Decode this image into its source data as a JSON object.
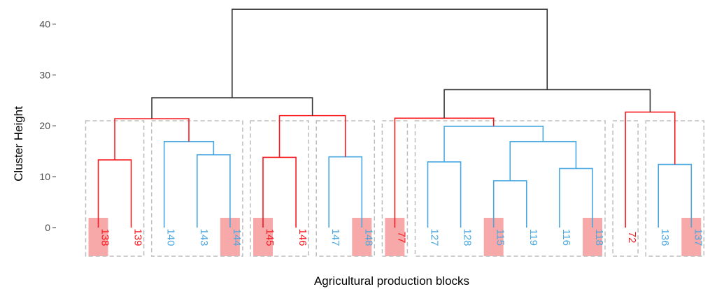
{
  "chart_data": {
    "type": "dendrogram",
    "xlabel": "Agricultural production blocks",
    "ylabel": "Cluster Height",
    "ylim": [
      -6,
      44
    ],
    "yticks": [
      0,
      10,
      20,
      30,
      40
    ],
    "grid": false,
    "colors": {
      "red": "#f8191f",
      "blue": "#4aa8e0",
      "root": "#333333",
      "highlight": "#f7a8a9",
      "box": "#bdbdbd"
    },
    "leaves": [
      {
        "label": "138",
        "color": "red",
        "highlight": true
      },
      {
        "label": "139",
        "color": "red",
        "highlight": false
      },
      {
        "label": "140",
        "color": "blue",
        "highlight": false
      },
      {
        "label": "143",
        "color": "blue",
        "highlight": false
      },
      {
        "label": "144",
        "color": "blue",
        "highlight": true
      },
      {
        "label": "145",
        "color": "red",
        "highlight": true
      },
      {
        "label": "146",
        "color": "red",
        "highlight": false
      },
      {
        "label": "147",
        "color": "blue",
        "highlight": false
      },
      {
        "label": "148",
        "color": "blue",
        "highlight": true
      },
      {
        "label": "77",
        "color": "red",
        "highlight": true
      },
      {
        "label": "127",
        "color": "blue",
        "highlight": false
      },
      {
        "label": "128",
        "color": "blue",
        "highlight": false
      },
      {
        "label": "115",
        "color": "blue",
        "highlight": true
      },
      {
        "label": "119",
        "color": "blue",
        "highlight": false
      },
      {
        "label": "116",
        "color": "blue",
        "highlight": false
      },
      {
        "label": "118",
        "color": "blue",
        "highlight": true
      },
      {
        "label": "72",
        "color": "red",
        "highlight": false
      },
      {
        "label": "136",
        "color": "blue",
        "highlight": false
      },
      {
        "label": "137",
        "color": "blue",
        "highlight": true
      }
    ],
    "merges": [
      {
        "id": "m1",
        "left": 0,
        "right": 1,
        "height": 13.3,
        "color": "red"
      },
      {
        "id": "m2",
        "left": 3,
        "right": 4,
        "height": 14.3,
        "color": "blue"
      },
      {
        "id": "m3",
        "left": 2,
        "right": "m2",
        "height": 16.9,
        "color": "blue"
      },
      {
        "id": "m4",
        "left": "m1",
        "right": "m3",
        "height": 21.4,
        "color": "red"
      },
      {
        "id": "m5",
        "left": 5,
        "right": 6,
        "height": 13.8,
        "color": "red"
      },
      {
        "id": "m6",
        "left": 7,
        "right": 8,
        "height": 13.9,
        "color": "blue"
      },
      {
        "id": "m7",
        "left": "m5",
        "right": "m6",
        "height": 22.0,
        "color": "red"
      },
      {
        "id": "m8",
        "left": "m4",
        "right": "m7",
        "height": 25.5,
        "color": "root"
      },
      {
        "id": "m9",
        "left": 10,
        "right": 11,
        "height": 12.9,
        "color": "blue"
      },
      {
        "id": "m10",
        "left": 12,
        "right": 13,
        "height": 9.2,
        "color": "blue"
      },
      {
        "id": "m11",
        "left": 14,
        "right": 15,
        "height": 11.6,
        "color": "blue"
      },
      {
        "id": "m12",
        "left": "m10",
        "right": "m11",
        "height": 16.9,
        "color": "blue"
      },
      {
        "id": "m13",
        "left": "m9",
        "right": "m12",
        "height": 19.9,
        "color": "blue"
      },
      {
        "id": "m14",
        "left": 9,
        "right": "m13",
        "height": 21.5,
        "color": "red"
      },
      {
        "id": "m15",
        "left": 17,
        "right": 18,
        "height": 12.4,
        "color": "blue"
      },
      {
        "id": "m16",
        "left": 16,
        "right": "m15",
        "height": 22.7,
        "color": "red"
      },
      {
        "id": "m17",
        "left": "m14",
        "right": "m16",
        "height": 27.1,
        "color": "root"
      },
      {
        "id": "m18",
        "left": "m8",
        "right": "m17",
        "height": 42.9,
        "color": "root"
      }
    ],
    "groups": [
      [
        0,
        1
      ],
      [
        2,
        4
      ],
      [
        5,
        6
      ],
      [
        7,
        8
      ],
      [
        9,
        9
      ],
      [
        10,
        15
      ],
      [
        16,
        16
      ],
      [
        17,
        18
      ]
    ]
  }
}
